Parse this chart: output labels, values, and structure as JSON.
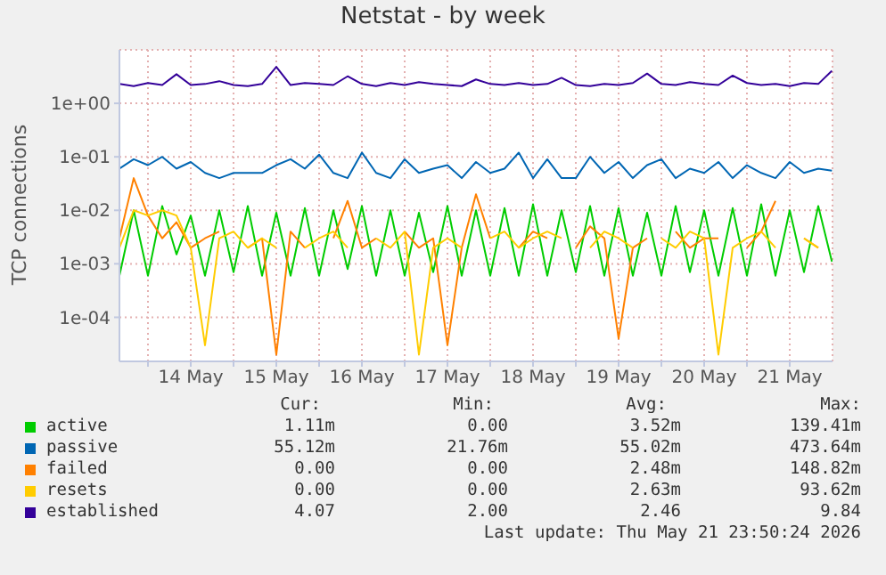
{
  "chart_data": {
    "type": "line",
    "title": "Netstat - by week",
    "ylabel": "TCP connections",
    "log": "y",
    "grid": true,
    "legend": "bottom",
    "marker": "none",
    "line_style": "solid",
    "xlim": [
      "2026-05-13T16:00",
      "2026-05-22T00:00"
    ],
    "xticks": [
      {
        "value": "2026-05-14T00:00",
        "label": null
      },
      {
        "value": "2026-05-14T12:00",
        "label": "14 May"
      },
      {
        "value": "2026-05-15T00:00",
        "label": null
      },
      {
        "value": "2026-05-15T12:00",
        "label": "15 May"
      },
      {
        "value": "2026-05-16T00:00",
        "label": null
      },
      {
        "value": "2026-05-16T12:00",
        "label": "16 May"
      },
      {
        "value": "2026-05-17T00:00",
        "label": null
      },
      {
        "value": "2026-05-17T12:00",
        "label": "17 May"
      },
      {
        "value": "2026-05-18T00:00",
        "label": null
      },
      {
        "value": "2026-05-18T12:00",
        "label": "18 May"
      },
      {
        "value": "2026-05-19T00:00",
        "label": null
      },
      {
        "value": "2026-05-19T12:00",
        "label": "19 May"
      },
      {
        "value": "2026-05-20T00:00",
        "label": null
      },
      {
        "value": "2026-05-20T12:00",
        "label": "20 May"
      },
      {
        "value": "2026-05-21T00:00",
        "label": null
      },
      {
        "value": "2026-05-21T12:00",
        "label": "21 May"
      }
    ],
    "ylim": [
      1.5e-05,
      10
    ],
    "yticks": [
      {
        "value": 0.0001,
        "label": "1e-04"
      },
      {
        "value": 0.001,
        "label": "1e-03"
      },
      {
        "value": 0.01,
        "label": "1e-02"
      },
      {
        "value": 0.1,
        "label": "1e-01"
      },
      {
        "value": 1,
        "label": "1e+00"
      }
    ],
    "x": [
      "2026-05-13T16:00",
      "2026-05-13T20:00",
      "2026-05-14T00:00",
      "2026-05-14T04:00",
      "2026-05-14T08:00",
      "2026-05-14T12:00",
      "2026-05-14T16:00",
      "2026-05-14T20:00",
      "2026-05-15T00:00",
      "2026-05-15T04:00",
      "2026-05-15T08:00",
      "2026-05-15T12:00",
      "2026-05-15T16:00",
      "2026-05-15T20:00",
      "2026-05-16T00:00",
      "2026-05-16T04:00",
      "2026-05-16T08:00",
      "2026-05-16T12:00",
      "2026-05-16T16:00",
      "2026-05-16T20:00",
      "2026-05-17T00:00",
      "2026-05-17T04:00",
      "2026-05-17T08:00",
      "2026-05-17T12:00",
      "2026-05-17T16:00",
      "2026-05-17T20:00",
      "2026-05-18T00:00",
      "2026-05-18T04:00",
      "2026-05-18T08:00",
      "2026-05-18T12:00",
      "2026-05-18T16:00",
      "2026-05-18T20:00",
      "2026-05-19T00:00",
      "2026-05-19T04:00",
      "2026-05-19T08:00",
      "2026-05-19T12:00",
      "2026-05-19T16:00",
      "2026-05-19T20:00",
      "2026-05-20T00:00",
      "2026-05-20T04:00",
      "2026-05-20T08:00",
      "2026-05-20T12:00",
      "2026-05-20T16:00",
      "2026-05-20T20:00",
      "2026-05-21T00:00",
      "2026-05-21T04:00",
      "2026-05-21T08:00",
      "2026-05-21T12:00",
      "2026-05-21T16:00",
      "2026-05-21T20:00",
      "2026-05-21T23:50"
    ],
    "series": [
      {
        "name": "active",
        "color": "#00cc00",
        "values": [
          0.0006,
          0.01,
          0.0006,
          0.012,
          0.0015,
          0.008,
          0.0006,
          0.01,
          0.0007,
          0.012,
          0.0006,
          0.009,
          0.0006,
          0.011,
          0.0006,
          0.01,
          0.0008,
          0.012,
          0.0006,
          0.01,
          0.0006,
          0.009,
          0.0007,
          0.012,
          0.0006,
          0.01,
          0.0006,
          0.011,
          0.0006,
          0.013,
          0.0006,
          0.01,
          0.0007,
          0.012,
          0.0006,
          0.011,
          0.0006,
          0.009,
          0.0006,
          0.012,
          0.0007,
          0.01,
          0.0006,
          0.011,
          0.0006,
          0.013,
          0.0006,
          0.01,
          0.0007,
          0.012,
          0.0011
        ]
      },
      {
        "name": "passive",
        "color": "#0066b3",
        "values": [
          0.06,
          0.09,
          0.07,
          0.1,
          0.06,
          0.08,
          0.05,
          0.04,
          0.05,
          0.05,
          0.05,
          0.07,
          0.09,
          0.06,
          0.11,
          0.05,
          0.04,
          0.12,
          0.05,
          0.04,
          0.09,
          0.05,
          0.06,
          0.07,
          0.04,
          0.08,
          0.05,
          0.06,
          0.12,
          0.04,
          0.09,
          0.04,
          0.04,
          0.1,
          0.05,
          0.08,
          0.04,
          0.07,
          0.09,
          0.04,
          0.06,
          0.05,
          0.08,
          0.04,
          0.07,
          0.05,
          0.04,
          0.08,
          0.05,
          0.06,
          0.055
        ]
      },
      {
        "name": "failed",
        "color": "#ff8000",
        "values": [
          0.003,
          0.04,
          0.008,
          0.003,
          0.006,
          0.002,
          0.003,
          0.004,
          null,
          0.002,
          0.003,
          2e-05,
          0.004,
          0.002,
          null,
          0.003,
          0.015,
          0.002,
          0.003,
          null,
          0.004,
          0.002,
          0.003,
          3e-05,
          0.002,
          0.02,
          0.003,
          null,
          0.002,
          0.004,
          0.003,
          null,
          0.002,
          0.005,
          0.003,
          4e-05,
          0.002,
          0.003,
          null,
          0.004,
          0.002,
          0.003,
          0.003,
          null,
          0.002,
          0.004,
          0.015,
          null,
          0.003,
          0.002,
          null
        ]
      },
      {
        "name": "resets",
        "color": "#ffcc00",
        "values": [
          0.002,
          0.01,
          0.008,
          0.01,
          0.008,
          0.002,
          3e-05,
          0.003,
          0.004,
          0.002,
          0.003,
          0.002,
          null,
          0.002,
          0.003,
          0.004,
          0.002,
          null,
          0.003,
          0.002,
          0.004,
          2e-05,
          0.002,
          0.003,
          0.002,
          null,
          0.003,
          0.004,
          0.002,
          0.003,
          0.004,
          0.003,
          null,
          0.002,
          0.004,
          0.003,
          0.002,
          null,
          0.003,
          0.002,
          0.004,
          0.003,
          2e-05,
          0.002,
          0.003,
          0.004,
          0.002,
          null,
          0.003,
          0.002,
          null
        ]
      },
      {
        "name": "established",
        "color": "#330099",
        "values": [
          2.3,
          2.1,
          2.4,
          2.2,
          3.5,
          2.2,
          2.3,
          2.6,
          2.2,
          2.1,
          2.3,
          4.8,
          2.2,
          2.4,
          2.3,
          2.2,
          3.2,
          2.3,
          2.1,
          2.4,
          2.2,
          2.5,
          2.3,
          2.2,
          2.1,
          2.8,
          2.3,
          2.2,
          2.4,
          2.2,
          2.3,
          3.0,
          2.2,
          2.1,
          2.3,
          2.2,
          2.4,
          3.6,
          2.3,
          2.2,
          2.5,
          2.3,
          2.2,
          3.3,
          2.4,
          2.2,
          2.3,
          2.1,
          2.4,
          2.3,
          4.07
        ]
      }
    ],
    "annotations": [
      "Cur:",
      "Min:",
      "Avg:",
      "Max:",
      "1.11m",
      "0.00",
      "3.52m",
      "139.41m",
      "55.12m",
      "21.76m",
      "55.02m",
      "473.64m",
      "0.00",
      "0.00",
      "2.48m",
      "148.82m",
      "0.00",
      "0.00",
      "2.63m",
      "93.62m",
      "4.07",
      "2.00",
      "2.46",
      "9.84",
      "Last update: Thu May 21 23:50:24 2026"
    ]
  }
}
